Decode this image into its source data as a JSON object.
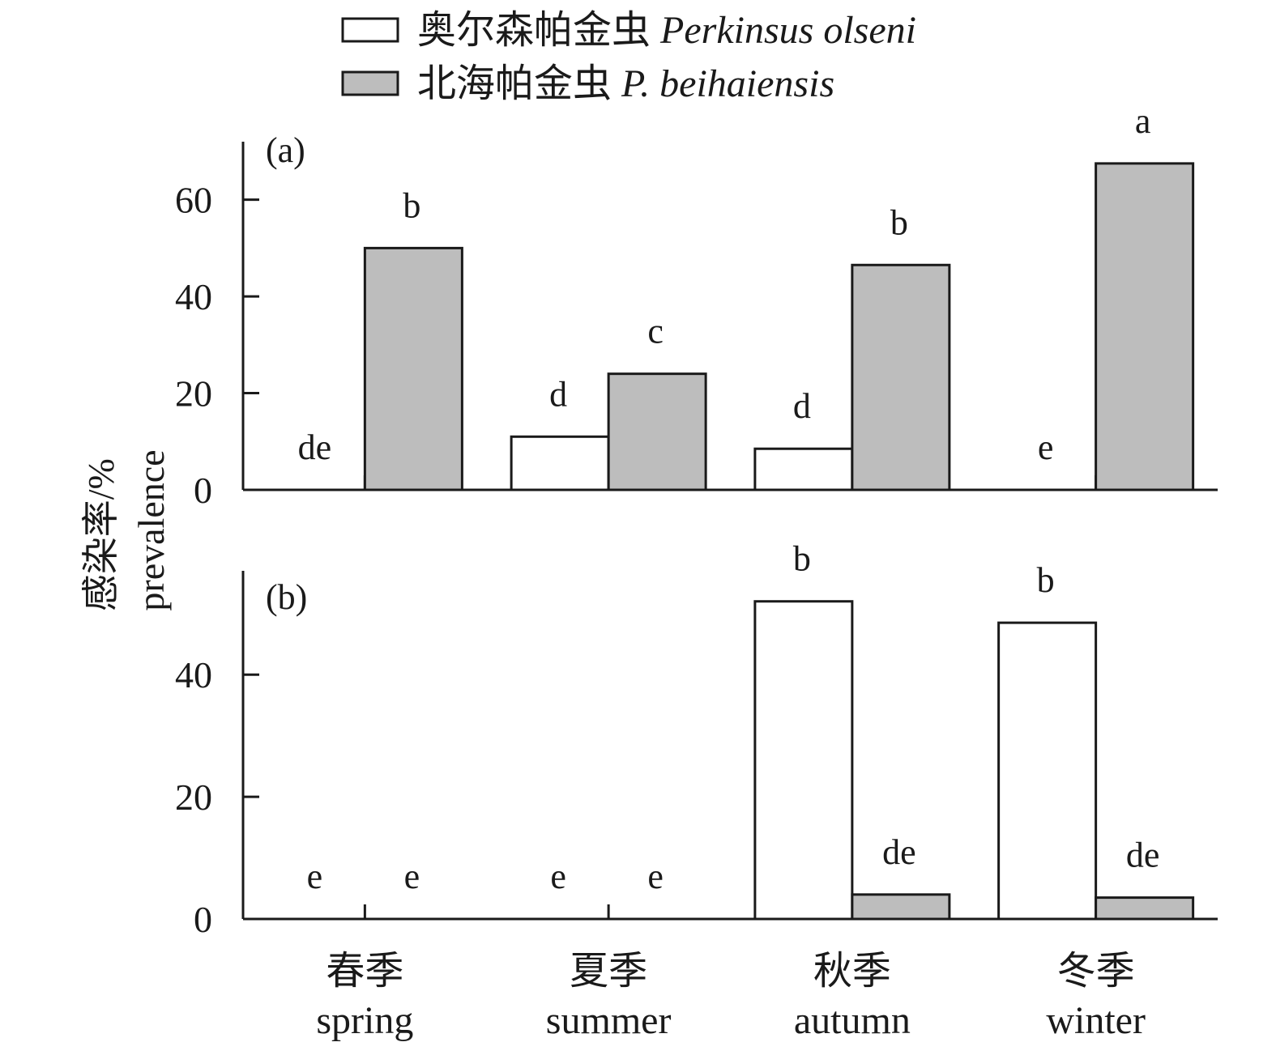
{
  "chart_data": {
    "type": "bar",
    "y_axis_label_cn": "感染率/%",
    "y_axis_label_en": "prevalence",
    "legend_placement": "top-center",
    "categories": [
      {
        "cn": "春季",
        "en": "spring"
      },
      {
        "cn": "夏季",
        "en": "summer"
      },
      {
        "cn": "秋季",
        "en": "autumn"
      },
      {
        "cn": "冬季",
        "en": "winter"
      }
    ],
    "series": [
      {
        "name_cn": "奥尔森帕金虫",
        "name_en": "Perkinsus olseni",
        "color": "#ffffff"
      },
      {
        "name_cn": "北海帕金虫",
        "name_en": "P. beihaiensis",
        "color": "#bdbdbd"
      }
    ],
    "panels": [
      {
        "label": "(a)",
        "ylim": [
          0,
          72
        ],
        "yticks": [
          0,
          20,
          40,
          60
        ],
        "values": [
          [
            0,
            11,
            8.5,
            0
          ],
          [
            50,
            24,
            46.5,
            67.5
          ]
        ],
        "significance": [
          [
            "de",
            "d",
            "d",
            "e"
          ],
          [
            "b",
            "c",
            "b",
            "a"
          ]
        ]
      },
      {
        "label": "(b)",
        "ylim": [
          0,
          57
        ],
        "yticks": [
          0,
          20,
          40
        ],
        "values": [
          [
            0,
            0,
            52,
            48.5
          ],
          [
            0,
            0,
            4,
            3.5
          ]
        ],
        "significance": [
          [
            "e",
            "e",
            "b",
            "b"
          ],
          [
            "e",
            "e",
            "de",
            "de"
          ]
        ]
      }
    ]
  }
}
